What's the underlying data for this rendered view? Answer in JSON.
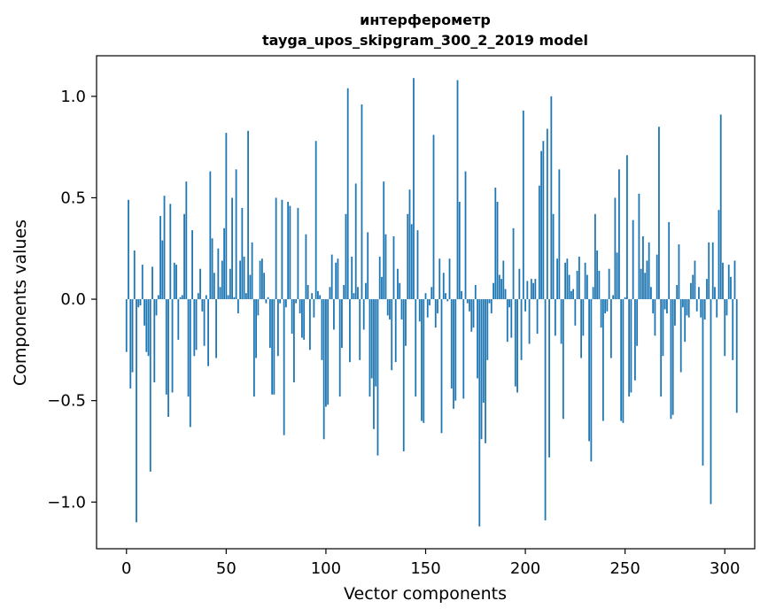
{
  "chart_data": {
    "type": "bar",
    "title_line1": "интерферометр",
    "title_line2": "tayga_upos_skipgram_300_2_2019 model",
    "xlabel": "Vector components",
    "ylabel": "Components values",
    "xlim": [
      -15,
      315
    ],
    "ylim": [
      -1.23,
      1.2
    ],
    "xticks": [
      0,
      50,
      100,
      150,
      200,
      250,
      300
    ],
    "xtick_labels": [
      "0",
      "50",
      "100",
      "150",
      "200",
      "250",
      "300"
    ],
    "yticks": [
      -1.0,
      -0.5,
      0.0,
      0.5,
      1.0
    ],
    "ytick_labels": [
      "−1.0",
      "−0.5",
      "0.0",
      "0.5",
      "1.0"
    ],
    "bar_color": "#1f77b4",
    "grid": false,
    "values": [
      -0.26,
      0.49,
      -0.44,
      -0.36,
      0.24,
      -1.1,
      -0.04,
      -0.03,
      0.17,
      -0.13,
      -0.26,
      -0.28,
      -0.85,
      0.16,
      -0.41,
      -0.08,
      0.02,
      0.41,
      0.29,
      0.51,
      -0.47,
      -0.58,
      0.47,
      -0.46,
      0.18,
      0.17,
      -0.2,
      0.01,
      0.02,
      0.42,
      0.58,
      -0.48,
      -0.63,
      0.34,
      -0.28,
      -0.25,
      0.03,
      0.15,
      -0.06,
      -0.23,
      0.02,
      -0.33,
      0.63,
      0.3,
      0.13,
      -0.29,
      0.25,
      0.06,
      0.19,
      0.35,
      0.82,
      0.02,
      0.15,
      0.5,
      0.01,
      0.64,
      -0.07,
      0.19,
      0.45,
      0.21,
      0.03,
      0.83,
      0.12,
      0.28,
      -0.48,
      -0.29,
      -0.08,
      0.19,
      0.2,
      0.13,
      -0.02,
      0.01,
      -0.24,
      -0.47,
      -0.47,
      0.5,
      -0.28,
      -0.02,
      0.49,
      -0.67,
      -0.04,
      0.48,
      0.46,
      -0.17,
      -0.41,
      -0.02,
      0.45,
      -0.07,
      -0.19,
      -0.2,
      0.32,
      0.07,
      -0.25,
      0.03,
      -0.09,
      0.78,
      0.04,
      0.02,
      -0.3,
      -0.69,
      -0.53,
      -0.52,
      0.06,
      0.22,
      -0.15,
      0.18,
      0.2,
      -0.48,
      -0.24,
      0.07,
      0.42,
      1.04,
      -0.31,
      0.21,
      0.03,
      0.57,
      0.06,
      -0.3,
      0.96,
      -0.15,
      0.08,
      0.33,
      -0.48,
      -0.39,
      -0.64,
      -0.43,
      -0.77,
      0.21,
      0.11,
      0.58,
      0.32,
      -0.08,
      -0.1,
      -0.35,
      0.31,
      -0.31,
      0.15,
      0.08,
      -0.1,
      -0.75,
      -0.23,
      0.42,
      0.54,
      0.37,
      1.09,
      -0.48,
      0.34,
      -0.11,
      -0.6,
      -0.61,
      0.03,
      -0.09,
      -0.03,
      0.06,
      0.81,
      -0.14,
      -0.07,
      0.2,
      -0.66,
      0.13,
      0.03,
      -0.01,
      0.2,
      -0.44,
      -0.54,
      -0.5,
      1.08,
      0.48,
      0.04,
      -0.49,
      0.63,
      -0.02,
      -0.06,
      -0.16,
      -0.14,
      0.07,
      -0.39,
      -1.12,
      -0.69,
      -0.51,
      -0.71,
      -0.3,
      -0.02,
      -0.07,
      0.08,
      0.55,
      0.48,
      0.12,
      0.1,
      0.19,
      0.05,
      -0.21,
      -0.04,
      -0.19,
      0.35,
      -0.43,
      -0.46,
      0.15,
      -0.3,
      0.93,
      -0.06,
      0.09,
      -0.22,
      0.1,
      0.08,
      0.1,
      -0.17,
      0.56,
      0.73,
      0.78,
      -1.09,
      0.84,
      -0.78,
      1.0,
      0.42,
      -0.18,
      0.2,
      0.64,
      -0.22,
      -0.59,
      0.18,
      0.2,
      0.12,
      0.04,
      0.05,
      -0.13,
      0.14,
      0.21,
      -0.29,
      -0.18,
      0.18,
      0.12,
      -0.7,
      -0.8,
      0.06,
      0.42,
      0.24,
      0.14,
      -0.14,
      -0.6,
      -0.07,
      -0.06,
      0.15,
      -0.29,
      0.02,
      0.5,
      0.23,
      0.64,
      -0.6,
      -0.61,
      0.01,
      0.71,
      -0.48,
      -0.46,
      0.39,
      -0.4,
      -0.23,
      0.52,
      0.15,
      0.31,
      0.13,
      0.19,
      0.28,
      0.06,
      -0.07,
      -0.18,
      0.22,
      0.85,
      -0.48,
      -0.28,
      -0.05,
      -0.07,
      0.38,
      -0.59,
      -0.57,
      -0.13,
      0.07,
      0.27,
      -0.36,
      -0.04,
      -0.21,
      -0.08,
      -0.09,
      0.08,
      0.12,
      0.19,
      -0.06,
      0.06,
      -0.09,
      -0.82,
      -0.1,
      0.1,
      0.28,
      -1.01,
      0.28,
      0.06,
      -0.09,
      0.44,
      0.91,
      0.18,
      -0.28,
      -0.08,
      0.17,
      0.11,
      -0.3,
      0.19,
      -0.56
    ]
  }
}
